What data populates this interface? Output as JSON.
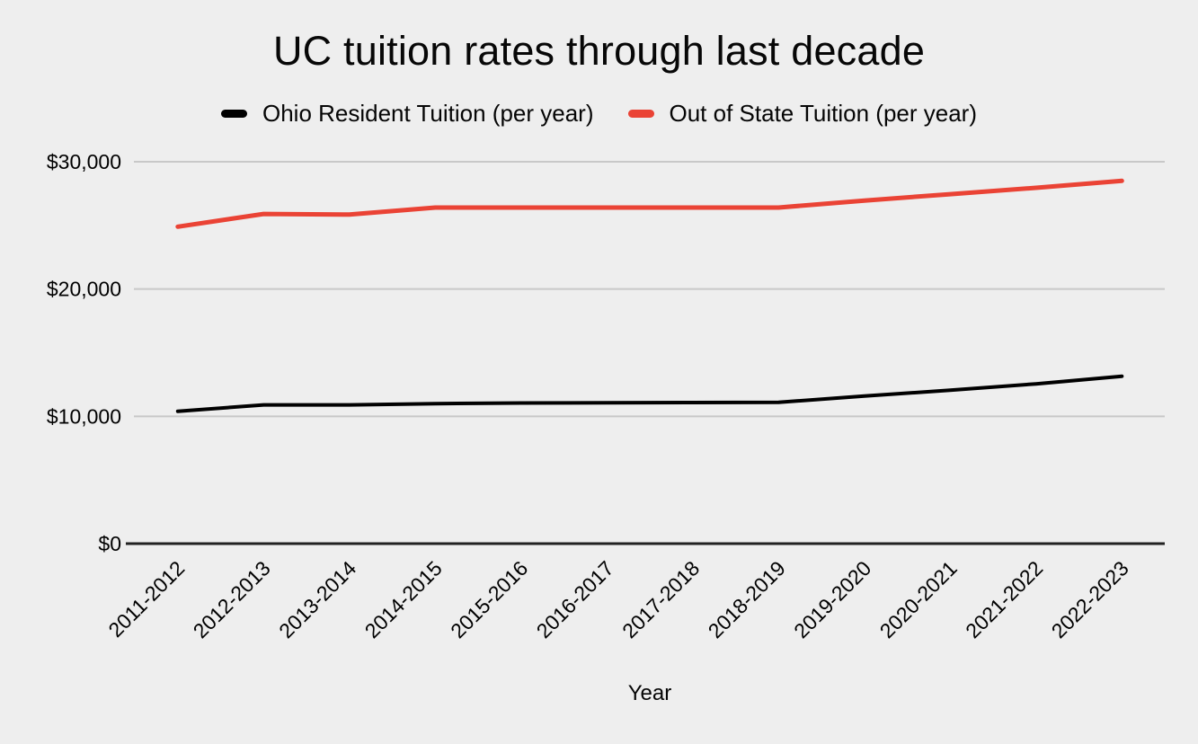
{
  "title": "UC tuition rates through last decade",
  "colors": {
    "background": "#eeeeee",
    "grid": "#c8c8c8",
    "axis": "#212121",
    "text": "#000000",
    "resident_series": "#000000",
    "out_of_state_series": "#ea4335"
  },
  "legend": [
    {
      "label": "Ohio Resident Tuition (per year)",
      "color": "#000000"
    },
    {
      "label": "Out of State Tuition (per year)",
      "color": "#ea4335"
    }
  ],
  "chart_data": {
    "type": "line",
    "title": "UC tuition rates through last decade",
    "xlabel": "Year",
    "ylabel": "",
    "grid": true,
    "legend_position": "top",
    "ylim": [
      0,
      30000
    ],
    "categories": [
      "2011-2012",
      "2012-2013",
      "2013-2014",
      "2014-2015",
      "2015-2016",
      "2016-2017",
      "2017-2018",
      "2018-2019",
      "2019-2020",
      "2020-2021",
      "2021-2022",
      "2022-2023"
    ],
    "series": [
      {
        "name": "Ohio Resident Tuition (per year)",
        "color": "#000000",
        "values": [
          10400,
          10900,
          10900,
          11000,
          11050,
          11060,
          11080,
          11100,
          11600,
          12050,
          12550,
          13150
        ]
      },
      {
        "name": "Out of State Tuition (per year)",
        "color": "#ea4335",
        "values": [
          24900,
          25900,
          25850,
          26400,
          26400,
          26400,
          26400,
          26400,
          26950,
          27450,
          27950,
          28500
        ]
      }
    ],
    "y_ticks": [
      {
        "value": 0,
        "label": "$0"
      },
      {
        "value": 10000,
        "label": "$10,000"
      },
      {
        "value": 20000,
        "label": "$20,000"
      },
      {
        "value": 30000,
        "label": "$30,000"
      }
    ]
  }
}
